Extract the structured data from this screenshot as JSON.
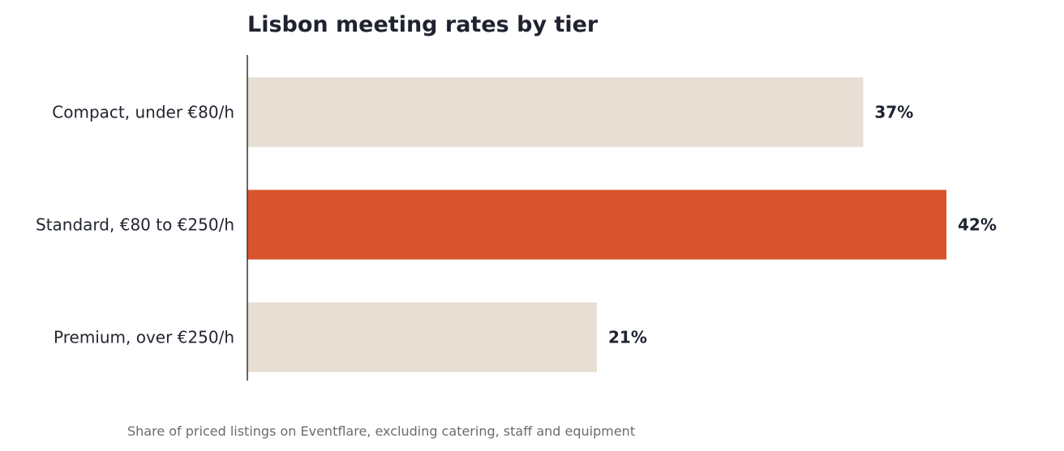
{
  "chart_data": {
    "type": "bar",
    "orientation": "horizontal",
    "title": "Lisbon meeting rates by tier",
    "caption": "Share of priced listings on Eventflare, excluding catering, staff and equipment",
    "categories": [
      "Compact, under €80/h",
      "Standard, €80 to €250/h",
      "Premium, over €250/h"
    ],
    "values": [
      37,
      42,
      21
    ],
    "value_labels": [
      "37%",
      "42%",
      "21%"
    ],
    "highlight_index": 1,
    "xlim": [
      0,
      42
    ],
    "grid": false,
    "legend": "none",
    "colors": {
      "bar": "#e7ded4",
      "highlight": "#d9542c",
      "axis": "#333333"
    }
  }
}
